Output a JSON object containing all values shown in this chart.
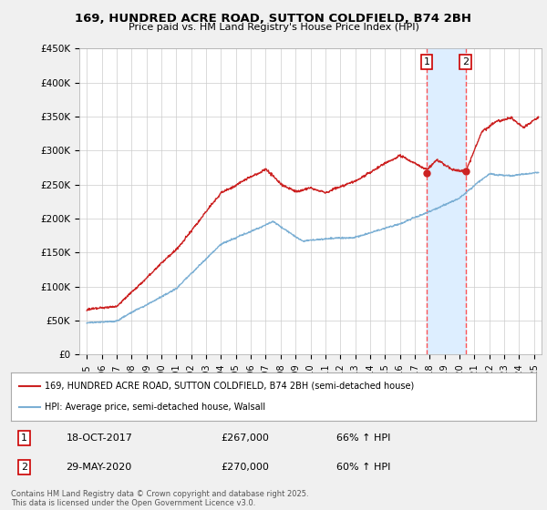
{
  "title": "169, HUNDRED ACRE ROAD, SUTTON COLDFIELD, B74 2BH",
  "subtitle": "Price paid vs. HM Land Registry's House Price Index (HPI)",
  "ylabel_ticks": [
    "£0",
    "£50K",
    "£100K",
    "£150K",
    "£200K",
    "£250K",
    "£300K",
    "£350K",
    "£400K",
    "£450K"
  ],
  "ylim": [
    0,
    450000
  ],
  "xlim_start": 1994.5,
  "xlim_end": 2025.5,
  "red_line_color": "#cc2222",
  "blue_line_color": "#7bafd4",
  "annotation1": {
    "label": "1",
    "date_x": 2017.8,
    "y": 267000,
    "text_date": "18-OCT-2017",
    "price": "£267,000",
    "pct": "66% ↑ HPI"
  },
  "annotation2": {
    "label": "2",
    "date_x": 2020.4,
    "y": 270000,
    "text_date": "29-MAY-2020",
    "price": "£270,000",
    "pct": "60% ↑ HPI"
  },
  "legend_line1": "169, HUNDRED ACRE ROAD, SUTTON COLDFIELD, B74 2BH (semi-detached house)",
  "legend_line2": "HPI: Average price, semi-detached house, Walsall",
  "footnote": "Contains HM Land Registry data © Crown copyright and database right 2025.\nThis data is licensed under the Open Government Licence v3.0.",
  "background_color": "#f0f0f0",
  "plot_bg_color": "#ffffff",
  "grid_color": "#cccccc",
  "shade_x1": 2017.8,
  "shade_x2": 2020.4,
  "shade_color": "#ddeeff",
  "vline_color": "#ff4444"
}
